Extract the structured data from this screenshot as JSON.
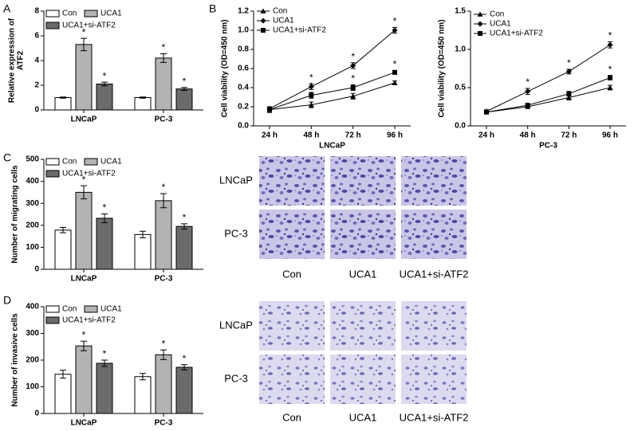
{
  "panel_labels": [
    "A",
    "B",
    "C",
    "D"
  ],
  "chart_data": [
    {
      "type": "bar",
      "ylabel": [
        "Relative expression of",
        "ATF2"
      ],
      "categories": [
        "LNCaP",
        "PC-3"
      ],
      "ylim": [
        0,
        8
      ],
      "yticks": [
        0,
        2,
        4,
        6,
        8
      ],
      "series": [
        {
          "name": "Con",
          "color": "#ffffff",
          "values": [
            1.0,
            1.0
          ],
          "errors": [
            0.05,
            0.05
          ]
        },
        {
          "name": "UCA1",
          "color": "#b3b3b3",
          "values": [
            5.3,
            4.2
          ],
          "errors": [
            0.5,
            0.35
          ],
          "annotations": [
            "*",
            "*"
          ]
        },
        {
          "name": "UCA1+si-ATF2",
          "color": "#6b6b6b",
          "values": [
            2.1,
            1.7
          ],
          "errors": [
            0.15,
            0.12
          ],
          "annotations": [
            "*",
            "*"
          ]
        }
      ]
    },
    {
      "type": "line",
      "ylabel": "Cell viability (OD=450 nm)",
      "xlabel": "LNCaP",
      "categories": [
        "24 h",
        "48 h",
        "72 h",
        "96 h"
      ],
      "ylim": [
        0,
        1.2
      ],
      "yticks": [
        {
          "value": 0,
          "label": "0.0"
        },
        0.2,
        0.4,
        0.6,
        0.8,
        {
          "value": 1,
          "label": "1.0"
        },
        1.2
      ],
      "series": [
        {
          "name": "Con",
          "color": "#000000",
          "marker": "triangle",
          "values": [
            0.17,
            0.22,
            0.31,
            0.45
          ],
          "errors": [
            0.03,
            0.03,
            0.03,
            0.02
          ]
        },
        {
          "name": "UCA1",
          "color": "#000000",
          "marker": "diamond",
          "values": [
            0.18,
            0.41,
            0.63,
            1.0
          ],
          "errors": [
            0.02,
            0.03,
            0.03,
            0.03
          ],
          "annotations": [
            null,
            "*",
            "*",
            "*"
          ]
        },
        {
          "name": "UCA1+si-ATF2",
          "color": "#000000",
          "marker": "square",
          "values": [
            0.17,
            0.32,
            0.4,
            0.56
          ],
          "errors": [
            0.02,
            0.03,
            0.03,
            0.02
          ],
          "annotations": [
            null,
            "*",
            "*",
            "*"
          ]
        }
      ]
    },
    {
      "type": "line",
      "ylabel": "Cell viability (OD=450 nm)",
      "xlabel": "PC-3",
      "categories": [
        "24 h",
        "48 h",
        "72 h",
        "96 h"
      ],
      "ylim": [
        0,
        1.5
      ],
      "yticks": [
        {
          "value": 0,
          "label": "0.0"
        },
        0.5,
        {
          "value": 1,
          "label": "1.0"
        },
        1.5
      ],
      "series": [
        {
          "name": "Con",
          "color": "#000000",
          "marker": "triangle",
          "values": [
            0.18,
            0.25,
            0.37,
            0.5
          ],
          "errors": [
            0.02,
            0.02,
            0.03,
            0.03
          ]
        },
        {
          "name": "UCA1",
          "color": "#000000",
          "marker": "diamond",
          "values": [
            0.19,
            0.45,
            0.71,
            1.06
          ],
          "errors": [
            0.02,
            0.04,
            0.03,
            0.04
          ],
          "annotations": [
            null,
            "*",
            "*",
            "*"
          ]
        },
        {
          "name": "UCA1+si-ATF2",
          "color": "#000000",
          "marker": "square",
          "values": [
            0.18,
            0.27,
            0.42,
            0.63
          ],
          "errors": [
            0.02,
            0.02,
            0.03,
            0.03
          ],
          "annotations": [
            null,
            null,
            null,
            "*"
          ]
        }
      ]
    },
    {
      "type": "bar",
      "ylabel": "Number of migrating cells",
      "categories": [
        "LNCaP",
        "PC-3"
      ],
      "ylim": [
        0,
        500
      ],
      "yticks": [
        0,
        100,
        200,
        300,
        400,
        500
      ],
      "series": [
        {
          "name": "Con",
          "color": "#ffffff",
          "values": [
            178,
            158
          ],
          "errors": [
            12,
            15
          ]
        },
        {
          "name": "UCA1",
          "color": "#b3b3b3",
          "values": [
            350,
            312
          ],
          "errors": [
            30,
            32
          ],
          "annotations": [
            "*",
            "*"
          ]
        },
        {
          "name": "UCA1+si-ATF2",
          "color": "#6b6b6b",
          "values": [
            232,
            195
          ],
          "errors": [
            20,
            12
          ],
          "annotations": [
            "*",
            "*"
          ]
        }
      ]
    },
    {
      "type": "bar",
      "ylabel": "Number of invasive cells",
      "categories": [
        "LNCaP",
        "PC-3"
      ],
      "ylim": [
        0,
        400
      ],
      "yticks": [
        0,
        100,
        200,
        300,
        400
      ],
      "series": [
        {
          "name": "Con",
          "color": "#ffffff",
          "values": [
            147,
            138
          ],
          "errors": [
            15,
            12
          ]
        },
        {
          "name": "UCA1",
          "color": "#b3b3b3",
          "values": [
            253,
            220
          ],
          "errors": [
            18,
            18
          ],
          "annotations": [
            "*",
            "*"
          ]
        },
        {
          "name": "UCA1+si-ATF2",
          "color": "#6b6b6b",
          "values": [
            188,
            173
          ],
          "errors": [
            12,
            10
          ],
          "annotations": [
            "*",
            "*"
          ]
        }
      ]
    }
  ],
  "micrographs": [
    {
      "rows": [
        "LNCaP",
        "PC-3"
      ],
      "columns": [
        "Con",
        "UCA1",
        "UCA1+si-ATF2"
      ]
    },
    {
      "rows": [
        "LNCaP",
        "PC-3"
      ],
      "columns": [
        "Con",
        "UCA1",
        "UCA1+si-ATF2"
      ]
    }
  ]
}
